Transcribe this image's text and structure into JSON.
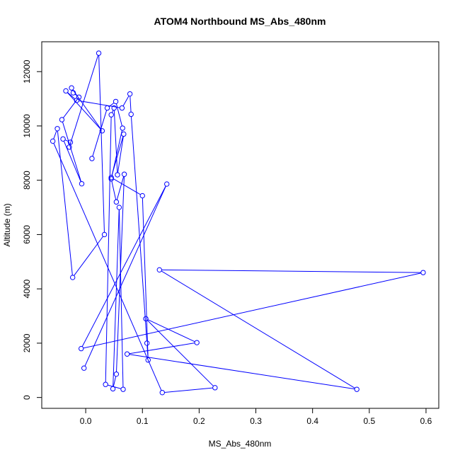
{
  "chart_data": {
    "type": "scatter",
    "title": "ATOM4 Northbound MS_Abs_480nm",
    "xlabel": "MS_Abs_480nm",
    "ylabel": "Altitude (m)",
    "xlim": [
      -0.0775,
      0.6225
    ],
    "ylim": [
      -400,
      13100
    ],
    "x_ticks": [
      0.0,
      0.1,
      0.2,
      0.3,
      0.4,
      0.5,
      0.6
    ],
    "x_tick_labels": [
      "0.0",
      "0.1",
      "0.2",
      "0.3",
      "0.4",
      "0.5",
      "0.6"
    ],
    "y_ticks": [
      0,
      2000,
      4000,
      6000,
      8000,
      10000,
      12000
    ],
    "y_tick_labels": [
      "0",
      "2000",
      "4000",
      "6000",
      "8000",
      "10000",
      "12000"
    ],
    "grid": false,
    "connected": true,
    "series": [
      {
        "color": "#0000ff",
        "marker": "open-circle",
        "x": [
          0.011,
          0.038,
          0.053,
          0.065,
          0.045,
          0.054,
          0.068,
          0.054,
          0.048,
          0.059,
          0.066,
          0.035,
          0.045,
          0.05,
          0.056,
          0.067,
          0.045,
          0.1,
          0.11,
          0.108,
          0.08,
          0.078,
          0.064,
          -0.016,
          -0.035,
          0.029,
          -0.025,
          -0.022,
          -0.012,
          -0.042,
          -0.007,
          -0.04,
          -0.027,
          -0.029,
          0.023,
          0.033,
          -0.023,
          -0.05,
          -0.058,
          0.135,
          0.228,
          0.106,
          0.196,
          0.073,
          0.478,
          0.13,
          0.595,
          -0.008,
          0.143,
          -0.003
        ],
        "y": [
          8800,
          10660,
          10900,
          9920,
          8050,
          7200,
          8220,
          860,
          320,
          7000,
          300,
          480,
          10410,
          10660,
          8200,
          9700,
          8100,
          7430,
          1380,
          2000,
          10430,
          11180,
          10660,
          10940,
          11290,
          9820,
          11400,
          11220,
          11060,
          10230,
          7870,
          9520,
          9400,
          9220,
          12680,
          6000,
          4420,
          9900,
          9440,
          180,
          360,
          2900,
          2020,
          1600,
          300,
          4700,
          4600,
          1800,
          7860,
          1080
        ]
      }
    ]
  }
}
